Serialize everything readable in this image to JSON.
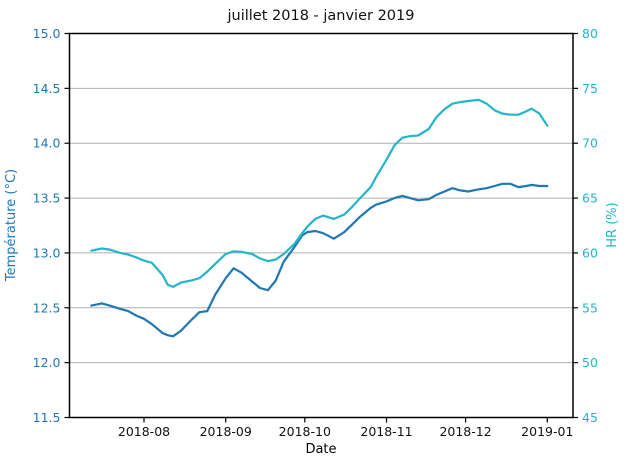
{
  "chart_data": {
    "type": "line",
    "title": "juillet 2018 - janvier 2019",
    "xlabel": "Date",
    "grid": "horizontal",
    "legend": "none",
    "x_tick_labels": [
      "2018-08",
      "2018-09",
      "2018-10",
      "2018-11",
      "2018-12",
      "2019-01"
    ],
    "left_axis": {
      "label": "Température (°C)",
      "min": 11.5,
      "max": 15.0,
      "tick_step": 0.5,
      "ticks": [
        "15.0",
        "14.5",
        "14.0",
        "13.5",
        "13.0",
        "12.5",
        "12.0",
        "11.5"
      ],
      "color": "#1f77b4"
    },
    "right_axis": {
      "label": "HR (%)",
      "min": 45,
      "max": 80,
      "tick_step": 5,
      "ticks": [
        "80",
        "75",
        "70",
        "65",
        "60",
        "55",
        "50",
        "45"
      ],
      "color": "#24b5ca"
    },
    "x": [
      "2018-07-12",
      "2018-07-16",
      "2018-07-19",
      "2018-07-23",
      "2018-07-26",
      "2018-07-29",
      "2018-08-01",
      "2018-08-04",
      "2018-08-08",
      "2018-08-10",
      "2018-08-12",
      "2018-08-15",
      "2018-08-19",
      "2018-08-22",
      "2018-08-25",
      "2018-08-28",
      "2018-09-01",
      "2018-09-04",
      "2018-09-07",
      "2018-09-11",
      "2018-09-14",
      "2018-09-17",
      "2018-09-20",
      "2018-09-23",
      "2018-09-27",
      "2018-09-30",
      "2018-10-02",
      "2018-10-05",
      "2018-10-08",
      "2018-10-12",
      "2018-10-16",
      "2018-10-19",
      "2018-10-22",
      "2018-10-26",
      "2018-10-28",
      "2018-11-01",
      "2018-11-04",
      "2018-11-07",
      "2018-11-10",
      "2018-11-13",
      "2018-11-17",
      "2018-11-20",
      "2018-11-23",
      "2018-11-26",
      "2018-11-29",
      "2018-12-02",
      "2018-12-06",
      "2018-12-09",
      "2018-12-12",
      "2018-12-15",
      "2018-12-18",
      "2018-12-21",
      "2018-12-24",
      "2018-12-26",
      "2018-12-29",
      "2019-01-01"
    ],
    "series": [
      {
        "name": "Température",
        "axis": "left",
        "unit": "°C",
        "color": "#1f77b4",
        "values": [
          12.52,
          12.54,
          12.52,
          12.49,
          12.47,
          12.43,
          12.4,
          12.35,
          12.27,
          12.25,
          12.24,
          12.29,
          12.39,
          12.46,
          12.47,
          12.62,
          12.77,
          12.86,
          12.82,
          12.74,
          12.68,
          12.66,
          12.75,
          12.92,
          13.05,
          13.16,
          13.19,
          13.2,
          13.18,
          13.13,
          13.19,
          13.26,
          13.33,
          13.41,
          13.44,
          13.47,
          13.5,
          13.52,
          13.5,
          13.48,
          13.49,
          13.53,
          13.56,
          13.59,
          13.57,
          13.56,
          13.58,
          13.59,
          13.61,
          13.63,
          13.63,
          13.6,
          13.61,
          13.62,
          13.61,
          13.61
        ]
      },
      {
        "name": "HR",
        "axis": "right",
        "unit": "%",
        "color": "#24b5ca",
        "values": [
          60.2,
          60.4,
          60.3,
          60.0,
          59.85,
          59.6,
          59.3,
          59.1,
          58.0,
          57.1,
          56.9,
          57.3,
          57.5,
          57.7,
          58.3,
          59.0,
          59.9,
          60.15,
          60.1,
          59.9,
          59.5,
          59.25,
          59.4,
          59.9,
          60.8,
          61.8,
          62.4,
          63.1,
          63.4,
          63.1,
          63.5,
          64.2,
          65.0,
          66.0,
          66.9,
          68.5,
          69.8,
          70.5,
          70.65,
          70.7,
          71.3,
          72.4,
          73.1,
          73.6,
          73.75,
          73.85,
          73.95,
          73.6,
          73.0,
          72.7,
          72.6,
          72.6,
          72.9,
          73.15,
          72.7,
          71.6
        ]
      }
    ],
    "grid_color": "#b0b0b0",
    "spine_color": "#000000"
  }
}
